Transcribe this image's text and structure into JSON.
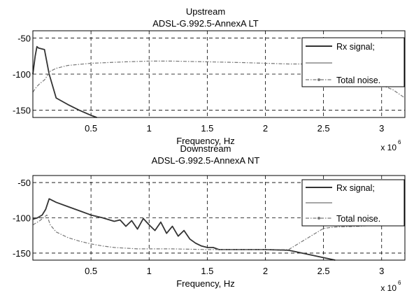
{
  "chart_data": [
    {
      "type": "line",
      "title": "Upstream",
      "subtitle": "ADSL-G.992.5-AnnexA LT",
      "xlabel": "Frequency, Hz",
      "ylabel": "",
      "x_multiplier": "x 10",
      "x_multiplier_exp": "6",
      "xlim": [
        0,
        3.2
      ],
      "ylim": [
        -160,
        -40
      ],
      "xticks": [
        0.5,
        1,
        1.5,
        2,
        2.5,
        3
      ],
      "xtick_labels": [
        "0.5",
        "1",
        "1.5",
        "2",
        "2.5",
        "3"
      ],
      "yticks": [
        -50,
        -100,
        -150
      ],
      "ytick_labels": [
        "-50",
        "-100",
        "-150"
      ],
      "grid": true,
      "legend_position": "top-right",
      "legend": [
        "Rx signal;",
        "",
        "Total noise."
      ],
      "series": [
        {
          "name": "Rx signal;",
          "color": "#333333",
          "style": "solid",
          "x": [
            0,
            0.02,
            0.035,
            0.05,
            0.1,
            0.14,
            0.2,
            0.3,
            0.4,
            0.5,
            0.55
          ],
          "y": [
            -100,
            -75,
            -62,
            -64,
            -66,
            -100,
            -133,
            -142,
            -150,
            -157,
            -160
          ]
        },
        {
          "name": "",
          "color": "#888888",
          "style": "solid",
          "x": [],
          "y": []
        },
        {
          "name": "Total noise.",
          "color": "#777777",
          "style": "dashdot",
          "x": [
            0,
            0.03,
            0.06,
            0.1,
            0.15,
            0.2,
            0.3,
            0.5,
            0.8,
            1.0,
            1.2,
            1.5,
            1.8,
            2.0,
            2.2,
            2.5,
            2.7,
            2.8,
            2.9,
            3.0,
            3.1,
            3.2
          ],
          "y": [
            -125,
            -118,
            -113,
            -108,
            -96,
            -92,
            -88,
            -85,
            -83,
            -82,
            -82,
            -83,
            -84,
            -85,
            -86,
            -86,
            -86,
            -88,
            -105,
            -115,
            -122,
            -133
          ]
        }
      ]
    },
    {
      "type": "line",
      "title": "Downstream",
      "subtitle": "ADSL-G.992.5-AnnexA NT",
      "xlabel": "Frequency, Hz",
      "ylabel": "",
      "x_multiplier": "x 10",
      "x_multiplier_exp": "6",
      "xlim": [
        0,
        3.2
      ],
      "ylim": [
        -160,
        -40
      ],
      "xticks": [
        0.5,
        1,
        1.5,
        2,
        2.5,
        3
      ],
      "xtick_labels": [
        "0.5",
        "1",
        "1.5",
        "2",
        "2.5",
        "3"
      ],
      "yticks": [
        -50,
        -100,
        -150
      ],
      "ytick_labels": [
        "-50",
        "-100",
        "-150"
      ],
      "grid": true,
      "legend_position": "top-right",
      "legend": [
        "Rx signal;",
        "",
        "Total noise."
      ],
      "series": [
        {
          "name": "Rx signal;",
          "color": "#333333",
          "style": "solid",
          "x": [
            0,
            0.04,
            0.08,
            0.11,
            0.14,
            0.2,
            0.3,
            0.4,
            0.5,
            0.6,
            0.7,
            0.75,
            0.8,
            0.85,
            0.9,
            0.95,
            1.0,
            1.05,
            1.1,
            1.15,
            1.2,
            1.25,
            1.3,
            1.35,
            1.4,
            1.45,
            1.5,
            1.55,
            1.6,
            1.8,
            2.0,
            2.2,
            2.4,
            2.6
          ],
          "y": [
            -102,
            -100,
            -96,
            -88,
            -73,
            -78,
            -84,
            -90,
            -96,
            -100,
            -105,
            -103,
            -112,
            -104,
            -116,
            -101,
            -110,
            -118,
            -106,
            -122,
            -112,
            -126,
            -118,
            -130,
            -136,
            -140,
            -142,
            -142,
            -145,
            -145,
            -145,
            -146,
            -153,
            -160
          ]
        },
        {
          "name": "",
          "color": "#888888",
          "style": "solid",
          "x": [],
          "y": []
        },
        {
          "name": "Total noise.",
          "color": "#777777",
          "style": "dashdot",
          "x": [
            0,
            0.03,
            0.06,
            0.09,
            0.12,
            0.15,
            0.2,
            0.3,
            0.4,
            0.5,
            0.6,
            0.7,
            0.8,
            0.9,
            1.0,
            1.2,
            1.5,
            1.8,
            2.0,
            2.2,
            2.4,
            2.5,
            2.6,
            2.8,
            3.0,
            3.2
          ],
          "y": [
            -110,
            -107,
            -104,
            -100,
            -96,
            -110,
            -120,
            -128,
            -133,
            -137,
            -140,
            -142,
            -143,
            -144,
            -144,
            -144,
            -145,
            -145,
            -145,
            -145,
            -125,
            -115,
            -113,
            -112,
            -110,
            -103
          ]
        }
      ]
    }
  ]
}
